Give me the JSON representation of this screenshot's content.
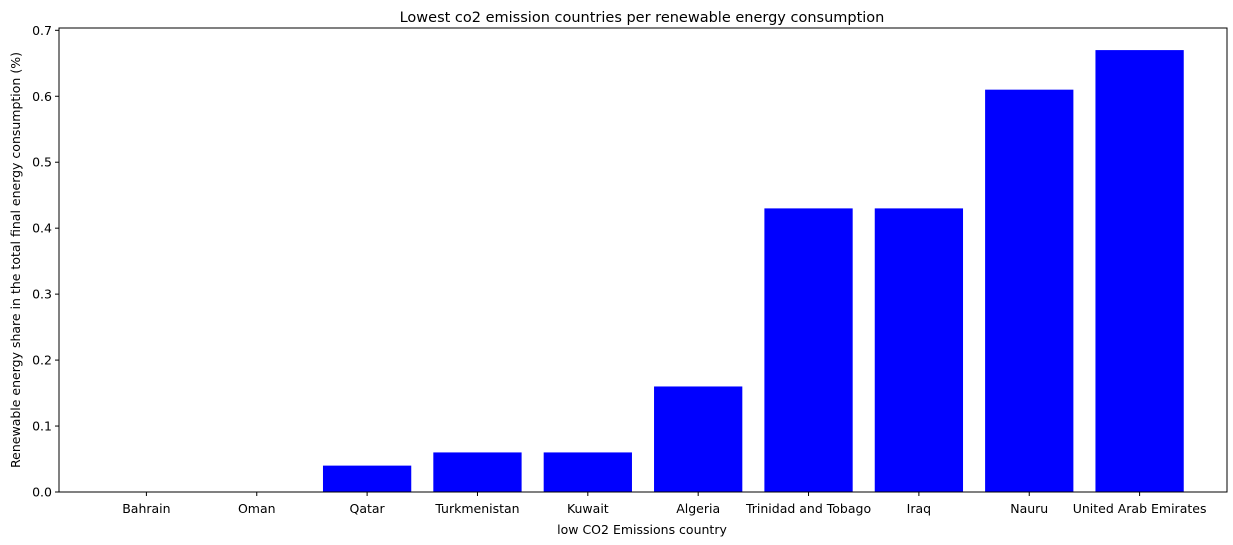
{
  "chart_data": {
    "type": "bar",
    "title": "Lowest co2 emission countries per renewable energy consumption",
    "xlabel": "low CO2 Emissions country",
    "ylabel": "Renewable energy share in the total final energy consumption (%)",
    "categories": [
      "Bahrain",
      "Oman",
      "Qatar",
      "Turkmenistan",
      "Kuwait",
      "Algeria",
      "Trinidad and Tobago",
      "Iraq",
      "Nauru",
      "United Arab Emirates"
    ],
    "values": [
      0.0,
      0.0,
      0.04,
      0.06,
      0.06,
      0.16,
      0.43,
      0.43,
      0.61,
      0.67
    ],
    "ylim": [
      0,
      0.7035
    ],
    "yticks": [
      0.0,
      0.1,
      0.2,
      0.3,
      0.4,
      0.5,
      0.6,
      0.7
    ],
    "ytick_labels": [
      "0.0",
      "0.1",
      "0.2",
      "0.3",
      "0.4",
      "0.5",
      "0.6",
      "0.7"
    ],
    "bar_color": "#0000ff",
    "grid": false,
    "legend": "none"
  }
}
